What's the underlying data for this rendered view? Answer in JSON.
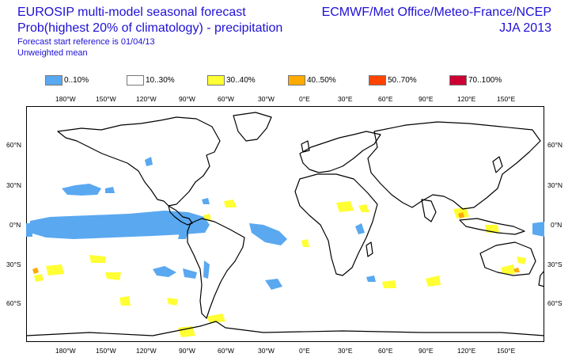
{
  "header": {
    "title_line1": "EUROSIP multi-model seasonal forecast",
    "title_line2": "Prob(highest 20% of climatology) - precipitation",
    "title_line3": "Forecast start reference is 01/04/13",
    "title_line4": "Unweighted mean",
    "org": "ECMWF/Met Office/Meteo-France/NCEP",
    "season": "JJA 2013"
  },
  "legend": [
    {
      "label": "0..10%",
      "color": "#5aa8f0"
    },
    {
      "label": "10..30%",
      "color": "#ffffff"
    },
    {
      "label": "30..40%",
      "color": "#ffff33"
    },
    {
      "label": "40..50%",
      "color": "#ffaa00"
    },
    {
      "label": "50..70%",
      "color": "#ff4400"
    },
    {
      "label": "70..100%",
      "color": "#cc0033"
    }
  ],
  "axes": {
    "longitude_labels": [
      "180°W",
      "150°W",
      "120°W",
      "90°W",
      "60°W",
      "30°W",
      "0°E",
      "30°E",
      "60°E",
      "90°E",
      "120°E",
      "150°E"
    ],
    "latitude_labels": [
      "60°N",
      "30°N",
      "0°N",
      "30°S",
      "60°S"
    ]
  },
  "colors": {
    "title": "#1f10d6",
    "coast": "#000000"
  }
}
